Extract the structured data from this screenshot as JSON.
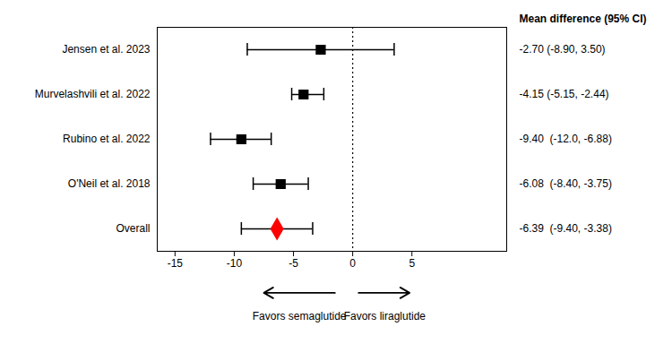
{
  "chart_data": {
    "type": "forest",
    "categories": [
      "Jensen et al. 2023",
      "Murvelashvili et al. 2022",
      "Rubino et al. 2022",
      "O'Neil et al. 2018",
      "Overall"
    ],
    "xlim": [
      -16.5,
      13
    ],
    "xticks": [
      -15,
      -10,
      -5,
      0,
      5
    ],
    "reference_line": 0,
    "value_labels_title": "Mean difference (95% CI)",
    "series": [
      {
        "color": "black",
        "marker": "square",
        "values": [
          -2.7,
          -4.15,
          -9.4,
          -6.08,
          null
        ],
        "ci_lower": [
          -8.9,
          -5.15,
          -12.0,
          -8.4,
          null
        ],
        "ci_upper": [
          3.5,
          -2.44,
          -6.88,
          -3.75,
          null
        ],
        "value_labels": [
          "-2.70 (-8.90, 3.50)",
          "-4.15 (-5.15, -2.44)",
          "-9.40  (-12.0, -6.88)",
          "-6.08  (-8.40, -3.75)",
          null
        ]
      },
      {
        "color": "red",
        "marker": "diamond",
        "values": [
          null,
          null,
          null,
          null,
          -6.39
        ],
        "ci_lower": [
          null,
          null,
          null,
          null,
          -9.4
        ],
        "ci_upper": [
          null,
          null,
          null,
          null,
          -3.38
        ],
        "value_labels": [
          null,
          null,
          null,
          null,
          "-6.39  (-9.40, -3.38)"
        ]
      }
    ],
    "annotations": [
      {
        "text": "Favors semaglutide",
        "x": -4.5,
        "arrow": [
          -1.5,
          -7.5
        ]
      },
      {
        "text": "Favors liraglutide",
        "x": 2.7,
        "arrow": [
          0.5,
          4.8
        ]
      }
    ]
  }
}
